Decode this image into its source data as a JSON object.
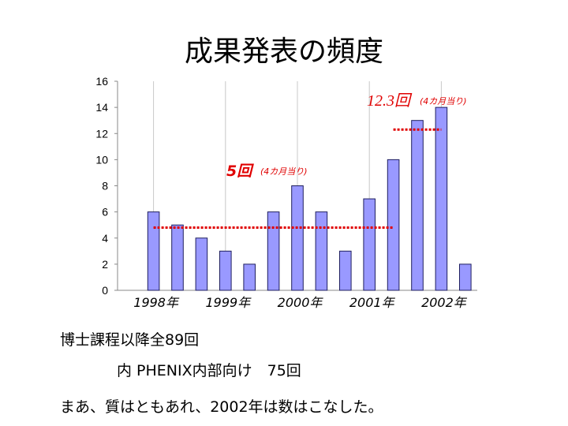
{
  "title": "成果発表の頻度",
  "chart_data": {
    "type": "bar",
    "values": [
      0,
      6,
      5,
      4,
      3,
      2,
      6,
      8,
      6,
      3,
      7,
      10,
      13,
      14,
      2
    ],
    "ylim": [
      0,
      16
    ],
    "yticks": [
      0,
      2,
      4,
      6,
      8,
      10,
      12,
      14,
      16
    ],
    "x_tick_labels": [
      "1998年",
      "1999年",
      "2000年",
      "2001年",
      "2002年"
    ],
    "x_tick_slots": [
      1.5,
      4.5,
      7.5,
      10.5,
      13.5
    ],
    "grid": "vertical",
    "bar_color": "#9999ff",
    "averages": [
      {
        "y": 4.8,
        "start": 1.5,
        "end": 11.5,
        "label": "5回",
        "note": "(4カ月当り)"
      },
      {
        "y": 12.3,
        "start": 11.5,
        "end": 13.5,
        "label": "12.3回",
        "note": "(4カ月当り)"
      }
    ],
    "avg_line_color": "#e00000"
  },
  "lines": {
    "line1": "博士課程以降全89回",
    "line2": "内 PHENIX内部向け　75回",
    "line3": "まあ、質はともあれ、2002年は数はこなした。"
  }
}
